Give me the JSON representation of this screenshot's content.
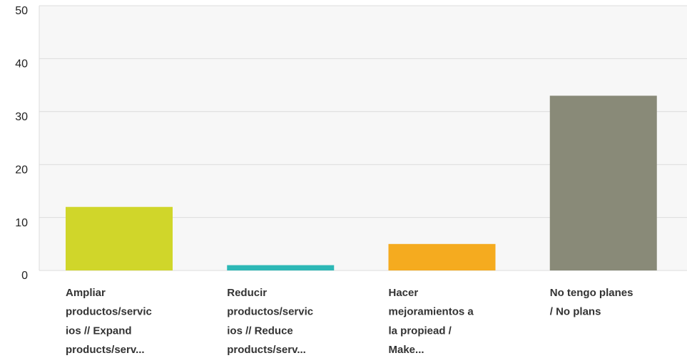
{
  "chart_data": {
    "type": "bar",
    "categories": [
      [
        "Ampliar",
        "productos/servic",
        "ios // Expand",
        "products/serv..."
      ],
      [
        "Reducir",
        "productos/servic",
        "ios // Reduce",
        "products/serv..."
      ],
      [
        "Hacer",
        "mejoramientos a",
        "la propiead /",
        "Make..."
      ],
      [
        "No tengo planes",
        "/ No plans"
      ]
    ],
    "values": [
      12,
      1,
      5,
      33
    ],
    "colors": [
      "#d0d62a",
      "#2db8b6",
      "#f5ab1f",
      "#898a78"
    ],
    "ylim": [
      0,
      50
    ],
    "yticks": [
      0,
      10,
      20,
      30,
      40,
      50
    ],
    "grid": true
  }
}
